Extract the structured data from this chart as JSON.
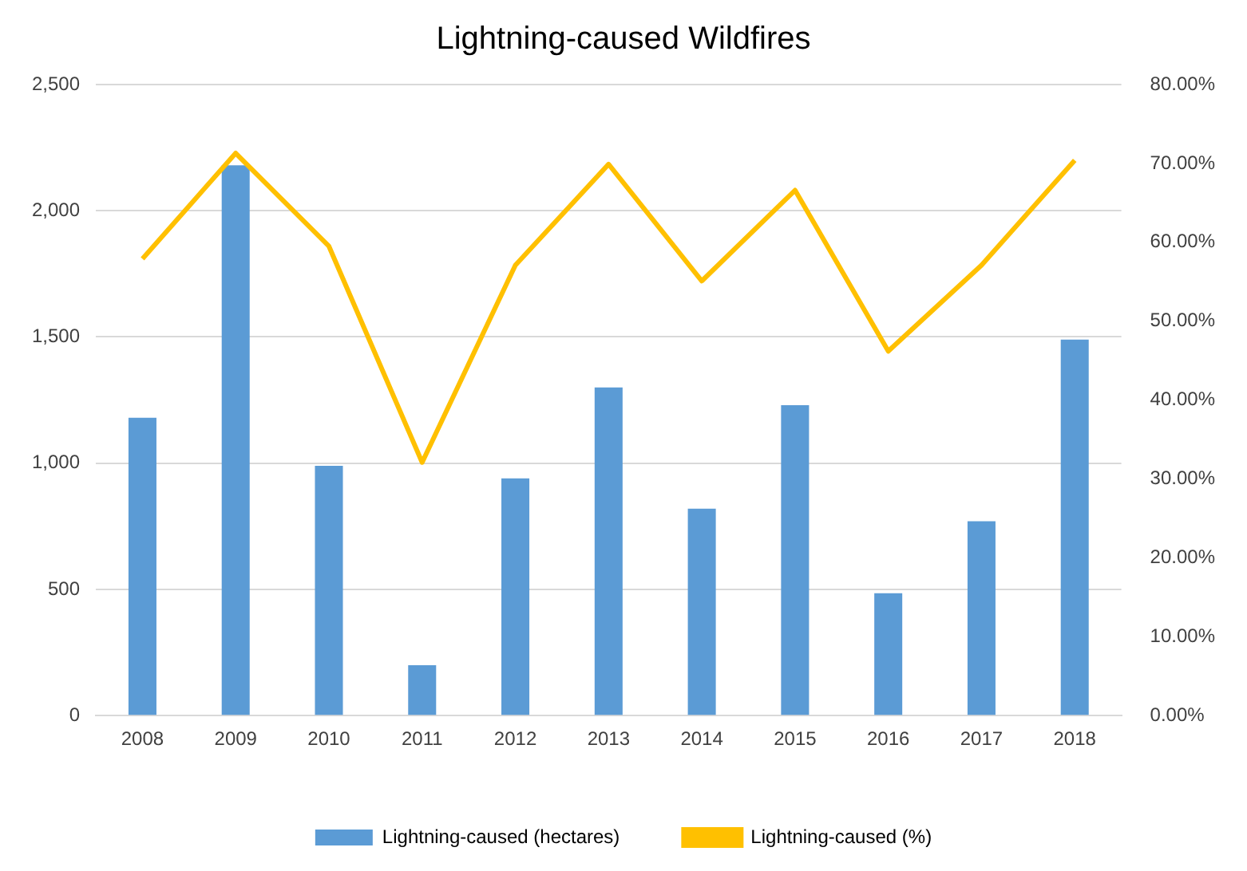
{
  "chart_data": {
    "type": "bar",
    "title": "Lightning-caused Wildfires",
    "categories": [
      "2008",
      "2009",
      "2010",
      "2011",
      "2012",
      "2013",
      "2014",
      "2015",
      "2016",
      "2017",
      "2018"
    ],
    "series": [
      {
        "name": "Lightning-caused (hectares)",
        "color": "#5b9bd5",
        "values": [
          1180,
          2180,
          990,
          200,
          940,
          1300,
          820,
          1230,
          485,
          770,
          1490
        ]
      },
      {
        "name": "Lightning-caused (%)",
        "type": "line",
        "axis": "y2",
        "color": "#ffc000",
        "values": [
          57.9,
          71.3,
          59.5,
          32.1,
          57.1,
          69.9,
          55.1,
          66.6,
          46.2,
          57.1,
          70.4
        ]
      }
    ],
    "ylim": [
      0,
      2500
    ],
    "yticks": [
      0,
      {
        "value": 500,
        "label": "500"
      },
      {
        "value": 1000,
        "label": "1,000"
      },
      {
        "value": 1500,
        "label": "1,500"
      },
      {
        "value": 2000,
        "label": "2,000"
      },
      {
        "value": 2500,
        "label": "2,500"
      }
    ],
    "y2lim": [
      0,
      80
    ],
    "y2ticks": [
      {
        "value": 0,
        "label": "0.00%"
      },
      {
        "value": 10,
        "label": "10.00%"
      },
      {
        "value": 20,
        "label": "20.00%"
      },
      {
        "value": 30,
        "label": "30.00%"
      },
      {
        "value": 40,
        "label": "40.00%"
      },
      {
        "value": 50,
        "label": "50.00%"
      },
      {
        "value": 60,
        "label": "60.00%"
      },
      {
        "value": 70,
        "label": "70.00%"
      },
      {
        "value": 80,
        "label": "80.00%"
      }
    ],
    "grid": "y",
    "legend": "bottom",
    "marker": "none",
    "line_style": "solid"
  }
}
